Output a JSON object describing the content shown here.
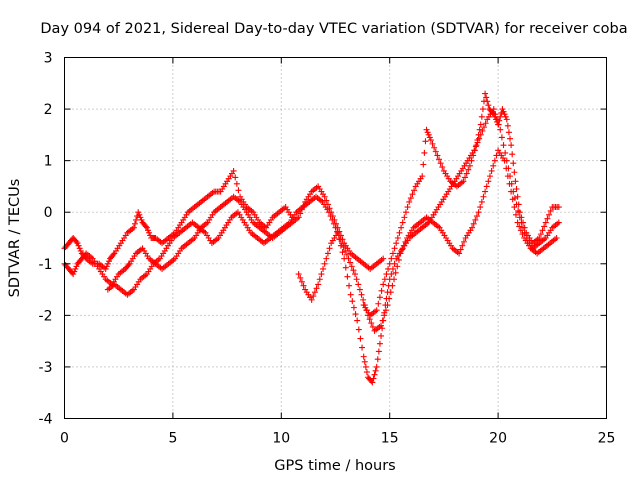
{
  "chart_data": {
    "type": "scatter",
    "title": "Day 094 of 2021, Sidereal Day-to-day VTEC variation (SDTVAR) for receiver coba",
    "xlabel": "GPS time / hours",
    "ylabel": "SDTVAR / TECUs",
    "xlim": [
      0,
      25
    ],
    "ylim": [
      -4,
      3
    ],
    "xticks": [
      "0",
      "5",
      "10",
      "15",
      "20",
      "25"
    ],
    "yticks": [
      "-4",
      "-3",
      "-2",
      "-1",
      "0",
      "1",
      "2",
      "3"
    ],
    "grid": true,
    "legend": "none",
    "marker": "+",
    "color": "#ff0000",
    "series": [
      {
        "x": [
          0.0,
          0.2,
          0.4,
          0.6,
          0.8,
          1.0,
          1.3,
          1.6,
          1.9,
          2.1,
          2.3,
          2.6,
          2.9,
          3.2,
          3.4,
          3.6,
          3.8,
          4.0,
          4.2,
          4.5,
          4.8,
          5.1,
          5.4,
          5.7,
          6.0,
          6.3,
          6.6,
          6.9,
          7.2,
          7.5,
          7.8,
          8.1,
          8.4,
          8.7,
          9.0,
          9.3,
          9.6,
          9.9,
          10.2,
          10.5
        ],
        "y": [
          -0.7,
          -0.6,
          -0.5,
          -0.6,
          -0.8,
          -0.9,
          -1.0,
          -1.0,
          -1.1,
          -0.9,
          -0.8,
          -0.6,
          -0.4,
          -0.3,
          0.0,
          -0.2,
          -0.3,
          -0.5,
          -0.5,
          -0.6,
          -0.5,
          -0.4,
          -0.2,
          0.0,
          0.1,
          0.2,
          0.3,
          0.4,
          0.4,
          0.6,
          0.8,
          0.3,
          0.1,
          0.0,
          -0.2,
          -0.3,
          -0.1,
          0.0,
          0.1,
          -0.1
        ]
      },
      {
        "x": [
          0.0,
          0.2,
          0.4,
          0.6,
          0.8,
          1.0,
          1.3,
          1.6,
          1.9,
          2.2,
          2.5,
          2.8,
          3.0,
          3.3,
          3.6,
          3.9,
          4.2,
          4.5,
          4.8,
          5.1,
          5.4,
          5.7,
          6.0,
          6.3,
          6.6,
          6.9,
          7.2,
          7.5,
          7.8,
          8.1,
          8.4,
          8.7,
          9.0,
          9.3,
          9.6,
          9.9,
          10.2,
          10.5,
          10.8,
          11.1,
          11.4,
          11.7,
          12.0,
          12.3,
          12.6,
          12.9,
          13.2,
          13.5,
          13.8,
          14.1,
          14.4,
          14.7
        ],
        "y": [
          -1.0,
          -1.1,
          -1.2,
          -1.0,
          -0.9,
          -0.8,
          -0.9,
          -1.1,
          -1.3,
          -1.4,
          -1.2,
          -1.1,
          -1.0,
          -0.8,
          -0.7,
          -0.9,
          -1.0,
          -1.1,
          -1.0,
          -0.9,
          -0.7,
          -0.6,
          -0.5,
          -0.3,
          -0.2,
          0.0,
          0.1,
          0.2,
          0.3,
          0.2,
          0.0,
          -0.2,
          -0.3,
          -0.4,
          -0.5,
          -0.4,
          -0.3,
          -0.2,
          -0.1,
          0.2,
          0.4,
          0.5,
          0.3,
          0.0,
          -0.3,
          -0.6,
          -0.8,
          -0.9,
          -1.0,
          -1.1,
          -1.0,
          -0.9
        ]
      },
      {
        "x": [
          2.0,
          2.3,
          2.6,
          2.9,
          3.2,
          3.5,
          3.8,
          4.1,
          4.4,
          4.7,
          5.0,
          5.3,
          5.6,
          5.9,
          6.2,
          6.5,
          6.8,
          7.1,
          7.4,
          7.7,
          8.0,
          8.3,
          8.6,
          8.9,
          9.2,
          9.5,
          9.8,
          10.1,
          10.4,
          10.7,
          11.0,
          11.3,
          11.6,
          11.9,
          12.2,
          12.5,
          12.8,
          13.1,
          13.4,
          13.7,
          14.0,
          14.3,
          14.6,
          14.9,
          15.2,
          15.5,
          15.8,
          16.1,
          16.4,
          16.7,
          17.0,
          17.3,
          17.6,
          17.9,
          18.2,
          18.5,
          18.8,
          19.1,
          19.4,
          19.7,
          20.0,
          20.3,
          20.6,
          20.9,
          21.2,
          21.5,
          21.8,
          22.1,
          22.4,
          22.7
        ],
        "y": [
          -1.5,
          -1.4,
          -1.5,
          -1.6,
          -1.5,
          -1.3,
          -1.2,
          -1.0,
          -0.9,
          -0.7,
          -0.5,
          -0.4,
          -0.3,
          -0.2,
          -0.3,
          -0.4,
          -0.6,
          -0.5,
          -0.3,
          -0.1,
          0.0,
          -0.2,
          -0.4,
          -0.5,
          -0.6,
          -0.5,
          -0.4,
          -0.3,
          -0.2,
          0.0,
          0.1,
          0.2,
          0.3,
          0.2,
          0.0,
          -0.3,
          -0.6,
          -0.9,
          -1.2,
          -1.6,
          -2.0,
          -2.3,
          -2.2,
          -1.8,
          -1.3,
          -0.8,
          -0.5,
          -0.3,
          -0.2,
          -0.1,
          -0.2,
          -0.3,
          -0.5,
          -0.7,
          -0.8,
          -0.5,
          -0.3,
          0.0,
          0.4,
          0.8,
          1.2,
          1.0,
          0.4,
          -0.2,
          -0.5,
          -0.7,
          -0.8,
          -0.7,
          -0.6,
          -0.5
        ]
      },
      {
        "x": [
          10.8,
          11.1,
          11.4,
          11.7,
          12.0,
          12.3,
          12.6,
          12.9,
          13.2,
          13.5,
          13.8,
          14.0,
          14.2,
          14.4,
          14.6,
          14.8,
          15.0,
          15.3,
          15.6,
          15.9,
          16.2,
          16.5,
          16.8,
          17.1,
          17.4,
          17.7,
          18.0,
          18.3,
          18.6,
          18.9,
          19.2,
          19.5,
          19.8,
          20.1,
          20.4,
          20.7,
          21.0,
          21.3,
          21.6,
          21.9,
          22.2,
          22.5,
          22.8
        ],
        "y": [
          -1.2,
          -1.5,
          -1.7,
          -1.4,
          -1.0,
          -0.6,
          -0.4,
          -0.9,
          -1.6,
          -2.1,
          -2.8,
          -3.2,
          -3.3,
          -3.0,
          -2.4,
          -1.8,
          -1.3,
          -0.9,
          -0.7,
          -0.5,
          -0.4,
          -0.3,
          -0.2,
          0.0,
          0.2,
          0.4,
          0.6,
          0.8,
          1.0,
          1.2,
          1.5,
          1.8,
          2.0,
          1.6,
          1.0,
          0.4,
          -0.1,
          -0.5,
          -0.7,
          -0.6,
          -0.5,
          -0.3,
          -0.2
        ]
      },
      {
        "x": [
          13.8,
          14.1,
          14.4,
          14.7,
          15.0,
          15.3,
          15.6,
          15.9,
          16.2,
          16.5,
          16.7,
          16.9,
          17.2,
          17.5,
          17.8,
          18.1,
          18.4,
          18.7,
          19.0,
          19.2,
          19.4,
          19.6,
          19.8,
          20.0,
          20.2,
          20.4,
          20.6,
          20.8,
          21.0,
          21.3,
          21.6,
          21.9,
          22.2,
          22.5,
          22.8
        ],
        "y": [
          -1.8,
          -2.0,
          -1.9,
          -1.4,
          -1.0,
          -0.6,
          -0.2,
          0.2,
          0.5,
          0.7,
          1.6,
          1.4,
          1.1,
          0.8,
          0.6,
          0.5,
          0.6,
          0.9,
          1.3,
          1.7,
          2.3,
          2.0,
          1.9,
          1.7,
          2.0,
          1.8,
          1.3,
          0.6,
          0.0,
          -0.4,
          -0.6,
          -0.5,
          -0.2,
          0.1,
          0.1
        ]
      }
    ]
  }
}
